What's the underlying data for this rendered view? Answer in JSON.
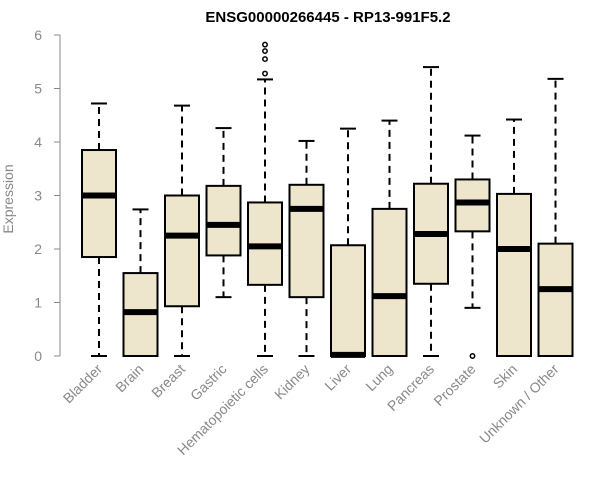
{
  "chart_data": {
    "type": "boxplot",
    "title": "ENSG00000266445 - RP13-991F5.2",
    "xlabel": "",
    "ylabel": "Expression",
    "ylim": [
      0,
      6
    ],
    "yticks": [
      "0",
      "1",
      "2",
      "3",
      "4",
      "5",
      "6"
    ],
    "colors": {
      "box_fill": "#ede6cc",
      "stroke": "#000000",
      "axis": "#888888",
      "text": "#888888",
      "title": "#000000"
    },
    "categories": [
      "Bladder",
      "Brain",
      "Breast",
      "Gastric",
      "Hematopoietic cells",
      "Kidney",
      "Liver",
      "Lung",
      "Pancreas",
      "Prostate",
      "Skin",
      "Unknown / Other"
    ],
    "boxes": [
      {
        "min": 0,
        "q1": 1.85,
        "median": 3.0,
        "q3": 3.85,
        "max": 4.72,
        "outliers": []
      },
      {
        "min": 0,
        "q1": 0,
        "median": 0.82,
        "q3": 1.55,
        "max": 2.74,
        "outliers": []
      },
      {
        "min": 0,
        "q1": 0.93,
        "median": 2.25,
        "q3": 3.0,
        "max": 4.68,
        "outliers": []
      },
      {
        "min": 1.1,
        "q1": 1.88,
        "median": 2.45,
        "q3": 3.18,
        "max": 4.26,
        "outliers": []
      },
      {
        "min": 0,
        "q1": 1.33,
        "median": 2.05,
        "q3": 2.87,
        "max": 5.17,
        "outliers": [
          5.28,
          5.55,
          5.7,
          5.82
        ]
      },
      {
        "min": 0,
        "q1": 1.1,
        "median": 2.75,
        "q3": 3.2,
        "max": 4.02,
        "outliers": []
      },
      {
        "min": 0,
        "q1": 0,
        "median": 0.02,
        "q3": 2.07,
        "max": 4.25,
        "outliers": []
      },
      {
        "min": 0,
        "q1": 0,
        "median": 1.12,
        "q3": 2.75,
        "max": 4.4,
        "outliers": []
      },
      {
        "min": 0,
        "q1": 1.35,
        "median": 2.28,
        "q3": 3.22,
        "max": 5.4,
        "outliers": []
      },
      {
        "min": 0.9,
        "q1": 2.33,
        "median": 2.87,
        "q3": 3.3,
        "max": 4.12,
        "outliers": [
          0
        ]
      },
      {
        "min": 0,
        "q1": 0,
        "median": 2.0,
        "q3": 3.03,
        "max": 4.42,
        "outliers": []
      },
      {
        "min": 0,
        "q1": 0,
        "median": 1.25,
        "q3": 2.1,
        "max": 5.18,
        "outliers": []
      }
    ]
  }
}
